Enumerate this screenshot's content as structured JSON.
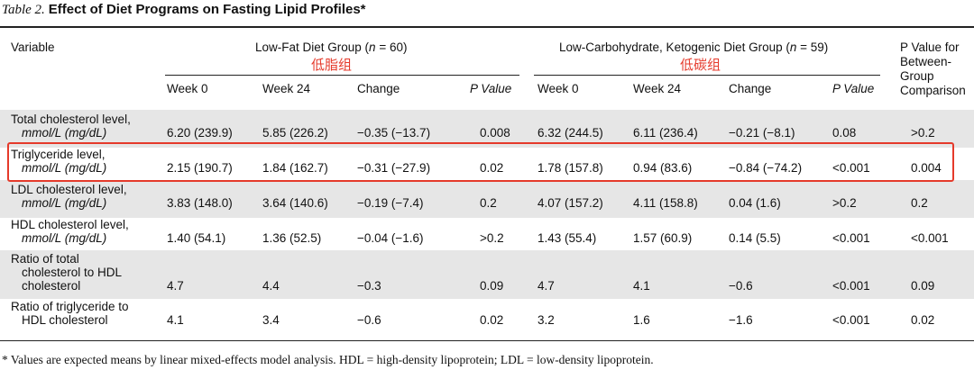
{
  "title": {
    "label": "Table 2.",
    "text": "Effect of Diet Programs on Fasting Lipid Profiles*"
  },
  "headers": {
    "variable": "Variable",
    "group1": "Low-Fat Diet Group (",
    "group1_n": "n",
    "group1_tail": " = 60)",
    "group1_cn": "低脂组",
    "group2": "Low-Carbohydrate, Ketogenic Diet Group (",
    "group2_n": "n",
    "group2_tail": " = 59)",
    "group2_cn": "低碳组",
    "pval_between_1": "P Value for",
    "pval_between_2": "Between-",
    "pval_between_3": "Group",
    "pval_between_4": "Comparison",
    "week0": "Week 0",
    "week24": "Week 24",
    "change": "Change",
    "pvalue": "P Value"
  },
  "rows": [
    {
      "var1": "Total cholesterol level,",
      "var2": "mmol/L (mg/dL)",
      "var3": "",
      "lf_w0": "6.20 (239.9)",
      "lf_w24": "5.85 (226.2)",
      "lf_ch": "−0.35 (−13.7)",
      "lf_p": "0.008",
      "lc_w0": "6.32 (244.5)",
      "lc_w24": "6.11 (236.4)",
      "lc_ch": "−0.21 (−8.1)",
      "lc_p": "0.08",
      "between": ">0.2"
    },
    {
      "var1": "Triglyceride level,",
      "var2": "mmol/L (mg/dL)",
      "var3": "",
      "lf_w0": "2.15 (190.7)",
      "lf_w24": "1.84 (162.7)",
      "lf_ch": "−0.31 (−27.9)",
      "lf_p": "0.02",
      "lc_w0": "1.78 (157.8)",
      "lc_w24": "0.94 (83.6)",
      "lc_ch": "−0.84 (−74.2)",
      "lc_p": "<0.001",
      "between": "0.004"
    },
    {
      "var1": "LDL cholesterol level,",
      "var2": "mmol/L (mg/dL)",
      "var3": "",
      "lf_w0": "3.83 (148.0)",
      "lf_w24": "3.64 (140.6)",
      "lf_ch": "−0.19 (−7.4)",
      "lf_p": "0.2",
      "lc_w0": "4.07 (157.2)",
      "lc_w24": "4.11 (158.8)",
      "lc_ch": "0.04 (1.6)",
      "lc_p": ">0.2",
      "between": "0.2"
    },
    {
      "var1": "HDL cholesterol level,",
      "var2": "mmol/L (mg/dL)",
      "var3": "",
      "lf_w0": "1.40 (54.1)",
      "lf_w24": "1.36 (52.5)",
      "lf_ch": "−0.04 (−1.6)",
      "lf_p": ">0.2",
      "lc_w0": "1.43 (55.4)",
      "lc_w24": "1.57 (60.9)",
      "lc_ch": "0.14 (5.5)",
      "lc_p": "<0.001",
      "between": "<0.001"
    },
    {
      "var1": "Ratio of total",
      "var2": "cholesterol to HDL",
      "var3": "cholesterol",
      "lf_w0": "4.7",
      "lf_w24": "4.4",
      "lf_ch": "−0.3",
      "lf_p": "0.09",
      "lc_w0": "4.7",
      "lc_w24": "4.1",
      "lc_ch": "−0.6",
      "lc_p": "<0.001",
      "between": "0.09"
    },
    {
      "var1": "Ratio of triglyceride to",
      "var2": "HDL cholesterol",
      "var3": "",
      "lf_w0": "4.1",
      "lf_w24": "3.4",
      "lf_ch": "−0.6",
      "lf_p": "0.02",
      "lc_w0": "3.2",
      "lc_w24": "1.6",
      "lc_ch": "−1.6",
      "lc_p": "<0.001",
      "between": "0.02"
    }
  ],
  "footnote": "* Values are expected means by linear mixed-effects model analysis. HDL = high-density lipoprotein; LDL = low-density lipoprotein.",
  "colors": {
    "highlight": "#e53a2b",
    "shade": "#e6e6e6"
  }
}
